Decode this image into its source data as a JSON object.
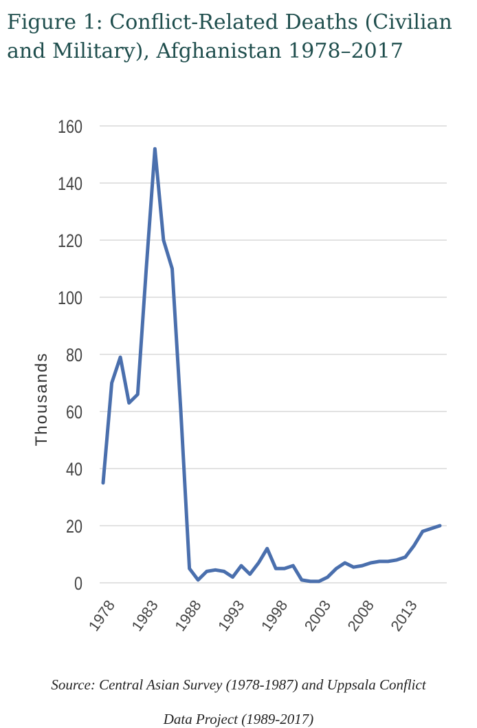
{
  "title": "Figure 1: Conflict-Related Deaths (Civilian and Military), Afghanistan 1978–2017",
  "source_line1": "Source: Central Asian Survey (1978-1987) and Uppsala Conflict",
  "source_line2": "Data Project (1989-2017)",
  "chart_data": {
    "type": "line",
    "ylabel": "Thousands",
    "xlabel": "",
    "ylim": [
      0,
      160
    ],
    "yticks": [
      "0",
      "20",
      "40",
      "60",
      "80",
      "100",
      "120",
      "140",
      "160"
    ],
    "xticks": [
      "1978",
      "1983",
      "1988",
      "1993",
      "1998",
      "2003",
      "2008",
      "2013"
    ],
    "grid": "horizontal",
    "line_color": "#4a6fad",
    "series": [
      {
        "x": [
          1978,
          1979,
          1980,
          1981,
          1982,
          1983,
          1984,
          1985,
          1986,
          1987,
          1988,
          1989,
          1990,
          1991,
          1992,
          1993,
          1994,
          1995,
          1996,
          1997,
          1998,
          1999,
          2000,
          2001,
          2002,
          2003,
          2004,
          2005,
          2006,
          2007,
          2008,
          2009,
          2010,
          2011,
          2012,
          2013,
          2014,
          2015,
          2016,
          2017
        ],
        "values": [
          35,
          70,
          79,
          63,
          66,
          110,
          152,
          120,
          110,
          60,
          5,
          1,
          4,
          4.5,
          4,
          2,
          6,
          3,
          7,
          12,
          5,
          5,
          6,
          1,
          0.5,
          0.5,
          2,
          5,
          7,
          5.5,
          6,
          7,
          7.5,
          7.5,
          8,
          9,
          13,
          18,
          19,
          20
        ]
      }
    ]
  }
}
